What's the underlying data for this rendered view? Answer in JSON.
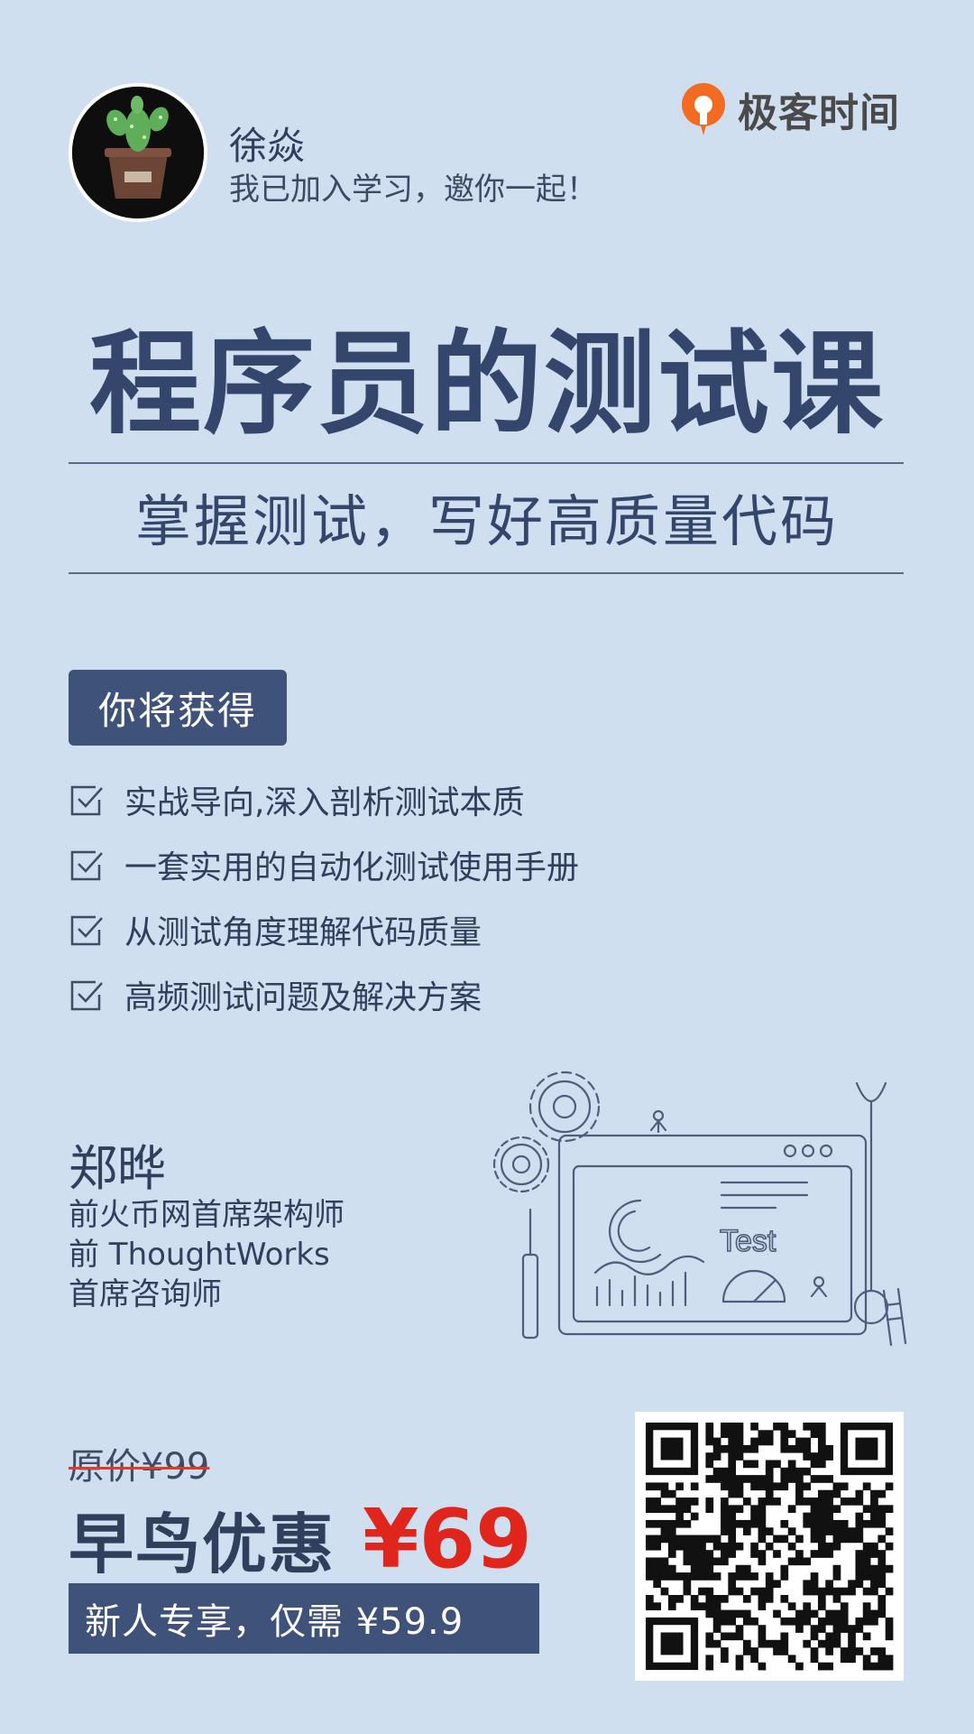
{
  "header": {
    "username": "徐焱",
    "invite_text": "我已加入学习，邀你一起！",
    "brand_name": "极客时间",
    "brand_color": "#f26b21"
  },
  "course": {
    "title": "程序员的测试课",
    "subtitle": "掌握测试，写好高质量代码"
  },
  "benefits": {
    "heading": "你将获得",
    "items": [
      "实战导向,深入剖析测试本质",
      "一套实用的自动化测试使用手册",
      "从测试角度理解代码质量",
      "高频测试问题及解决方案"
    ]
  },
  "instructor": {
    "name": "郑晔",
    "titles": [
      "前火币网首席架构师",
      "前 ThoughtWorks",
      "首席咨询师"
    ]
  },
  "illustration": {
    "label": "Test"
  },
  "pricing": {
    "original": "原价¥99",
    "early_label": "早鸟优惠",
    "early_price": "¥69",
    "new_user": "新人专享，仅需 ¥59.9",
    "price_color": "#e0261c"
  },
  "colors": {
    "background": "#d0dff0",
    "primary": "#34466b",
    "badge": "#3f5279"
  }
}
